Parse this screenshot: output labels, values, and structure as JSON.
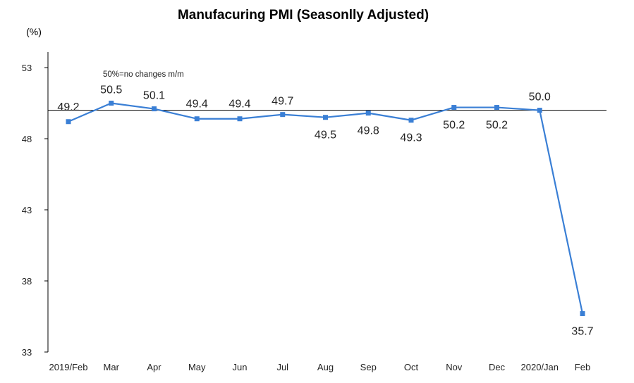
{
  "chart_data": {
    "type": "line",
    "title": "Manufacuring PMI (Seasonlly Adjusted)",
    "ylabel": "(%)",
    "ylim": [
      33,
      53
    ],
    "yticks": [
      33,
      38,
      43,
      48,
      53
    ],
    "categories": [
      "2019/Feb",
      "Mar",
      "Apr",
      "May",
      "Jun",
      "Jul",
      "Aug",
      "Sep",
      "Oct",
      "Nov",
      "Dec",
      "2020/Jan",
      "Feb"
    ],
    "series": [
      {
        "values": [
          49.2,
          50.5,
          50.1,
          49.4,
          49.4,
          49.7,
          49.5,
          49.8,
          49.3,
          50.2,
          50.2,
          50.0,
          35.7
        ]
      }
    ],
    "reference_line": {
      "value": 50,
      "label": "50%=no changes m/m"
    },
    "grid": false,
    "line_color": "#3a7fd5",
    "axis_color": "#000000"
  }
}
